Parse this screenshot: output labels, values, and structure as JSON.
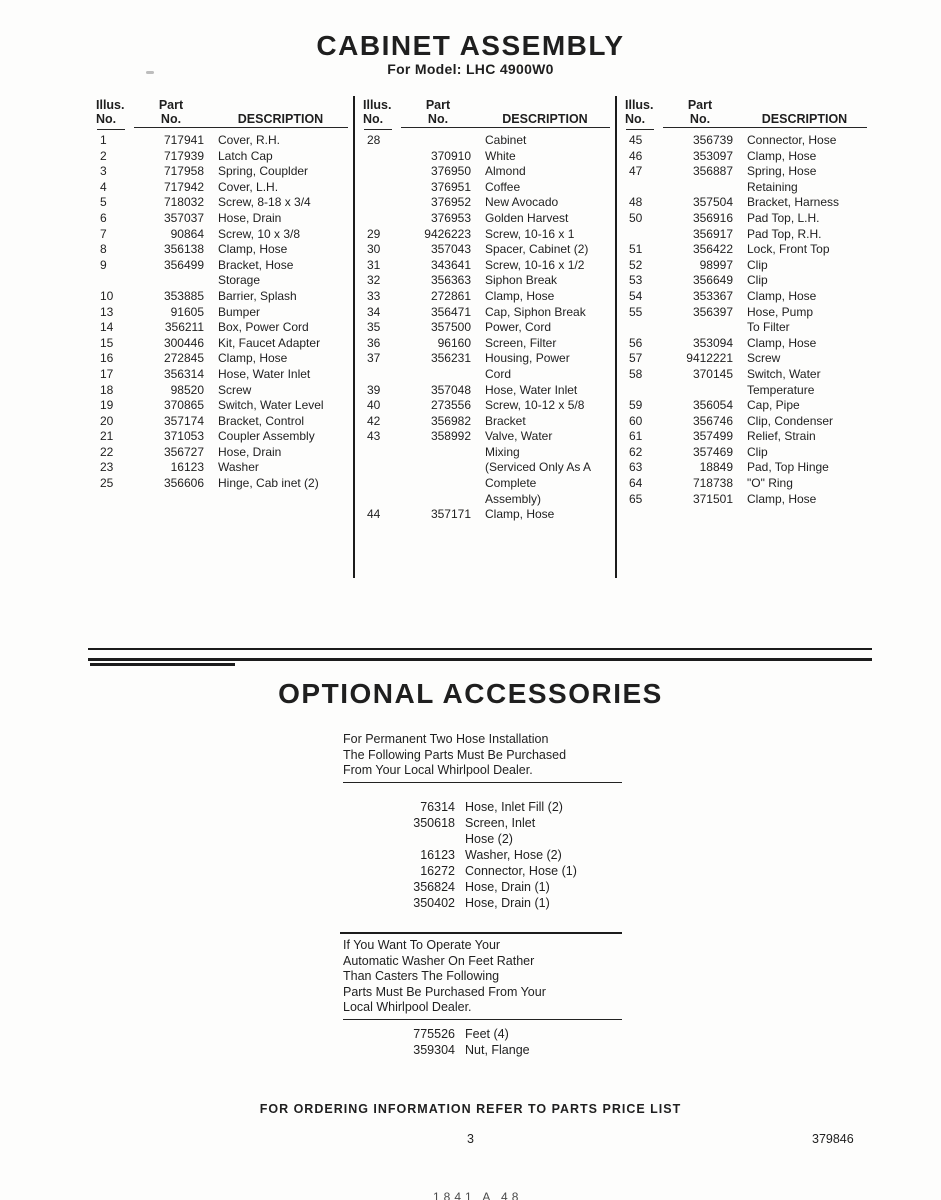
{
  "title": "CABINET ASSEMBLY",
  "subtitle": "For Model: LHC 4900W0",
  "table": {
    "headers": {
      "illus1": "Illus.",
      "illus2": "No.",
      "part1": "Part",
      "part2": "No.",
      "desc": "DESCRIPTION"
    },
    "columns": [
      {
        "rows": [
          [
            "1",
            "717941",
            "Cover, R.H."
          ],
          [
            "2",
            "717939",
            "Latch Cap"
          ],
          [
            "3",
            "717958",
            "Spring, Couplder"
          ],
          [
            "4",
            "717942",
            "Cover, L.H."
          ],
          [
            "5",
            "718032",
            "Screw, 8-18 x 3/4"
          ],
          [
            "6",
            "357037",
            "Hose, Drain"
          ],
          [
            "7",
            "90864",
            "Screw, 10 x 3/8"
          ],
          [
            "8",
            "356138",
            "Clamp, Hose"
          ],
          [
            "9",
            "356499",
            "Bracket, Hose\nStorage"
          ],
          [
            "10",
            "353885",
            "Barrier, Splash"
          ],
          [
            "13",
            "91605",
            "Bumper"
          ],
          [
            "14",
            "356211",
            "Box, Power Cord"
          ],
          [
            "15",
            "300446",
            "Kit, Faucet Adapter"
          ],
          [
            "16",
            "272845",
            "Clamp, Hose"
          ],
          [
            "17",
            "356314",
            "Hose, Water Inlet"
          ],
          [
            "18",
            "98520",
            "Screw"
          ],
          [
            "19",
            "370865",
            "Switch, Water Level"
          ],
          [
            "20",
            "357174",
            "Bracket, Control"
          ],
          [
            "21",
            "371053",
            "Coupler Assembly"
          ],
          [
            "22",
            "356727",
            "Hose, Drain"
          ],
          [
            "23",
            "16123",
            "Washer"
          ],
          [
            "25",
            "356606",
            "Hinge, Cab inet (2)"
          ]
        ]
      },
      {
        "rows": [
          [
            "28",
            "",
            "Cabinet"
          ],
          [
            "",
            "370910",
            "White"
          ],
          [
            "",
            "376950",
            "Almond"
          ],
          [
            "",
            "376951",
            "Coffee"
          ],
          [
            "",
            "376952",
            "New Avocado"
          ],
          [
            "",
            "376953",
            "Golden Harvest"
          ],
          [
            "29",
            "9426223",
            "Screw, 10-16 x 1"
          ],
          [
            "30",
            "357043",
            "Spacer, Cabinet (2)"
          ],
          [
            "31",
            "343641",
            "Screw, 10-16 x 1/2"
          ],
          [
            "32",
            "356363",
            "Siphon Break"
          ],
          [
            "33",
            "272861",
            "Clamp, Hose"
          ],
          [
            "34",
            "356471",
            "Cap, Siphon Break"
          ],
          [
            "35",
            "357500",
            "Power, Cord"
          ],
          [
            "36",
            "96160",
            "Screen, Filter"
          ],
          [
            "37",
            "356231",
            "Housing, Power\nCord"
          ],
          [
            "39",
            "357048",
            "Hose, Water Inlet"
          ],
          [
            "40",
            "273556",
            "Screw, 10-12 x 5/8"
          ],
          [
            "42",
            "356982",
            "Bracket"
          ],
          [
            "43",
            "358992",
            "Valve, Water\nMixing\n(Serviced Only As A\nComplete\nAssembly)"
          ],
          [
            "44",
            "357171",
            "Clamp, Hose"
          ]
        ]
      },
      {
        "rows": [
          [
            "45",
            "356739",
            "Connector, Hose"
          ],
          [
            "46",
            "353097",
            "Clamp, Hose"
          ],
          [
            "47",
            "356887",
            "Spring, Hose\nRetaining"
          ],
          [
            "48",
            "357504",
            "Bracket, Harness"
          ],
          [
            "50",
            "356916",
            "Pad Top, L.H."
          ],
          [
            "",
            "356917",
            "Pad Top, R.H."
          ],
          [
            "51",
            "356422",
            "Lock, Front Top"
          ],
          [
            "52",
            "98997",
            "Clip"
          ],
          [
            "53",
            "356649",
            "Clip"
          ],
          [
            "54",
            "353367",
            "Clamp, Hose"
          ],
          [
            "55",
            "356397",
            "Hose, Pump\nTo Filter"
          ],
          [
            "56",
            "353094",
            "Clamp, Hose"
          ],
          [
            "57",
            "9412221",
            "Screw"
          ],
          [
            "58",
            "370145",
            "Switch, Water\nTemperature"
          ],
          [
            "59",
            "356054",
            "Cap, Pipe"
          ],
          [
            "60",
            "356746",
            "Clip, Condenser"
          ],
          [
            "61",
            "357499",
            "Relief, Strain"
          ],
          [
            "62",
            "357469",
            "Clip"
          ],
          [
            "63",
            "18849",
            "Pad, Top Hinge"
          ],
          [
            "64",
            "718738",
            "\"O\" Ring"
          ],
          [
            "65",
            "371501",
            "Clamp, Hose"
          ]
        ]
      }
    ]
  },
  "optional": {
    "heading": "OPTIONAL ACCESSORIES",
    "note1": "For Permanent Two Hose Installation\nThe Following Parts Must Be Purchased\nFrom Your Local Whirlpool Dealer.",
    "parts1": [
      [
        "76314",
        "Hose, Inlet Fill (2)"
      ],
      [
        "350618",
        "Screen, Inlet\nHose (2)"
      ],
      [
        "16123",
        "Washer, Hose (2)"
      ],
      [
        "16272",
        "Connector, Hose (1)"
      ],
      [
        "356824",
        "Hose, Drain (1)"
      ],
      [
        "350402",
        "Hose, Drain (1)"
      ]
    ],
    "note2": "If You Want To Operate Your\nAutomatic Washer On Feet Rather\nThan Casters The Following\nParts Must Be Purchased From Your\nLocal Whirlpool Dealer.",
    "parts2": [
      [
        "775526",
        "Feet (4)"
      ],
      [
        "359304",
        "Nut, Flange"
      ]
    ]
  },
  "footer": {
    "ordering_note": "FOR ORDERING INFORMATION REFER TO PARTS PRICE LIST",
    "page_number": "3",
    "doc_number": "379846",
    "bottom_fragment": "1841 A 48"
  }
}
